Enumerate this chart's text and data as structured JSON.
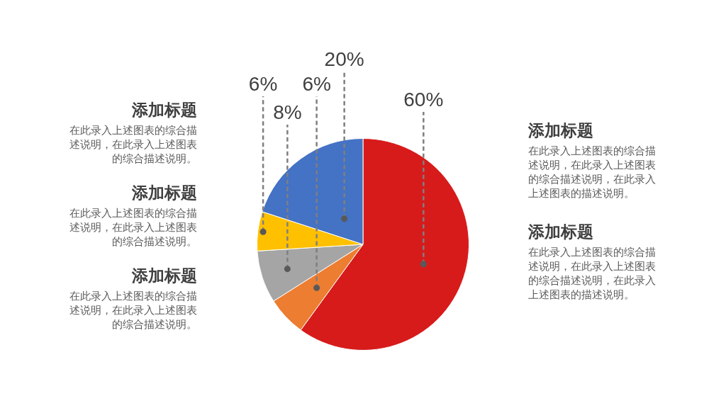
{
  "chart_data": {
    "type": "pie",
    "categories": [
      null,
      null,
      null,
      null,
      null
    ],
    "values": [
      60,
      6,
      8,
      6,
      20
    ],
    "colors": [
      "#d71b1b",
      "#ed7d31",
      "#a5a5a5",
      "#ffc000",
      "#4472c4"
    ],
    "value_labels": [
      "60%",
      "6%",
      "8%",
      "6%",
      "20%"
    ],
    "annotations": [
      "添加标题",
      "在此录入上述图表的综合描述说明，在此录入上述图表的综合描述说明。",
      "添加标题",
      "在此录入上述图表的综合描述说明，在此录入上述图表的综合描述说明。",
      "添加标题",
      "在此录入上述图表的综合描述说明，在此录入上述图表的综合描述说明。",
      "添加标题",
      "在此录入上述图表的综合描述说明，在此录入上述图表的综合描述说明，在此录入上述图表的描述说明。",
      "添加标题",
      "在此录入上述图表的综合描述说明，在此录入上述图表的综合描述说明，在此录入上述图表的描述说明。"
    ]
  }
}
